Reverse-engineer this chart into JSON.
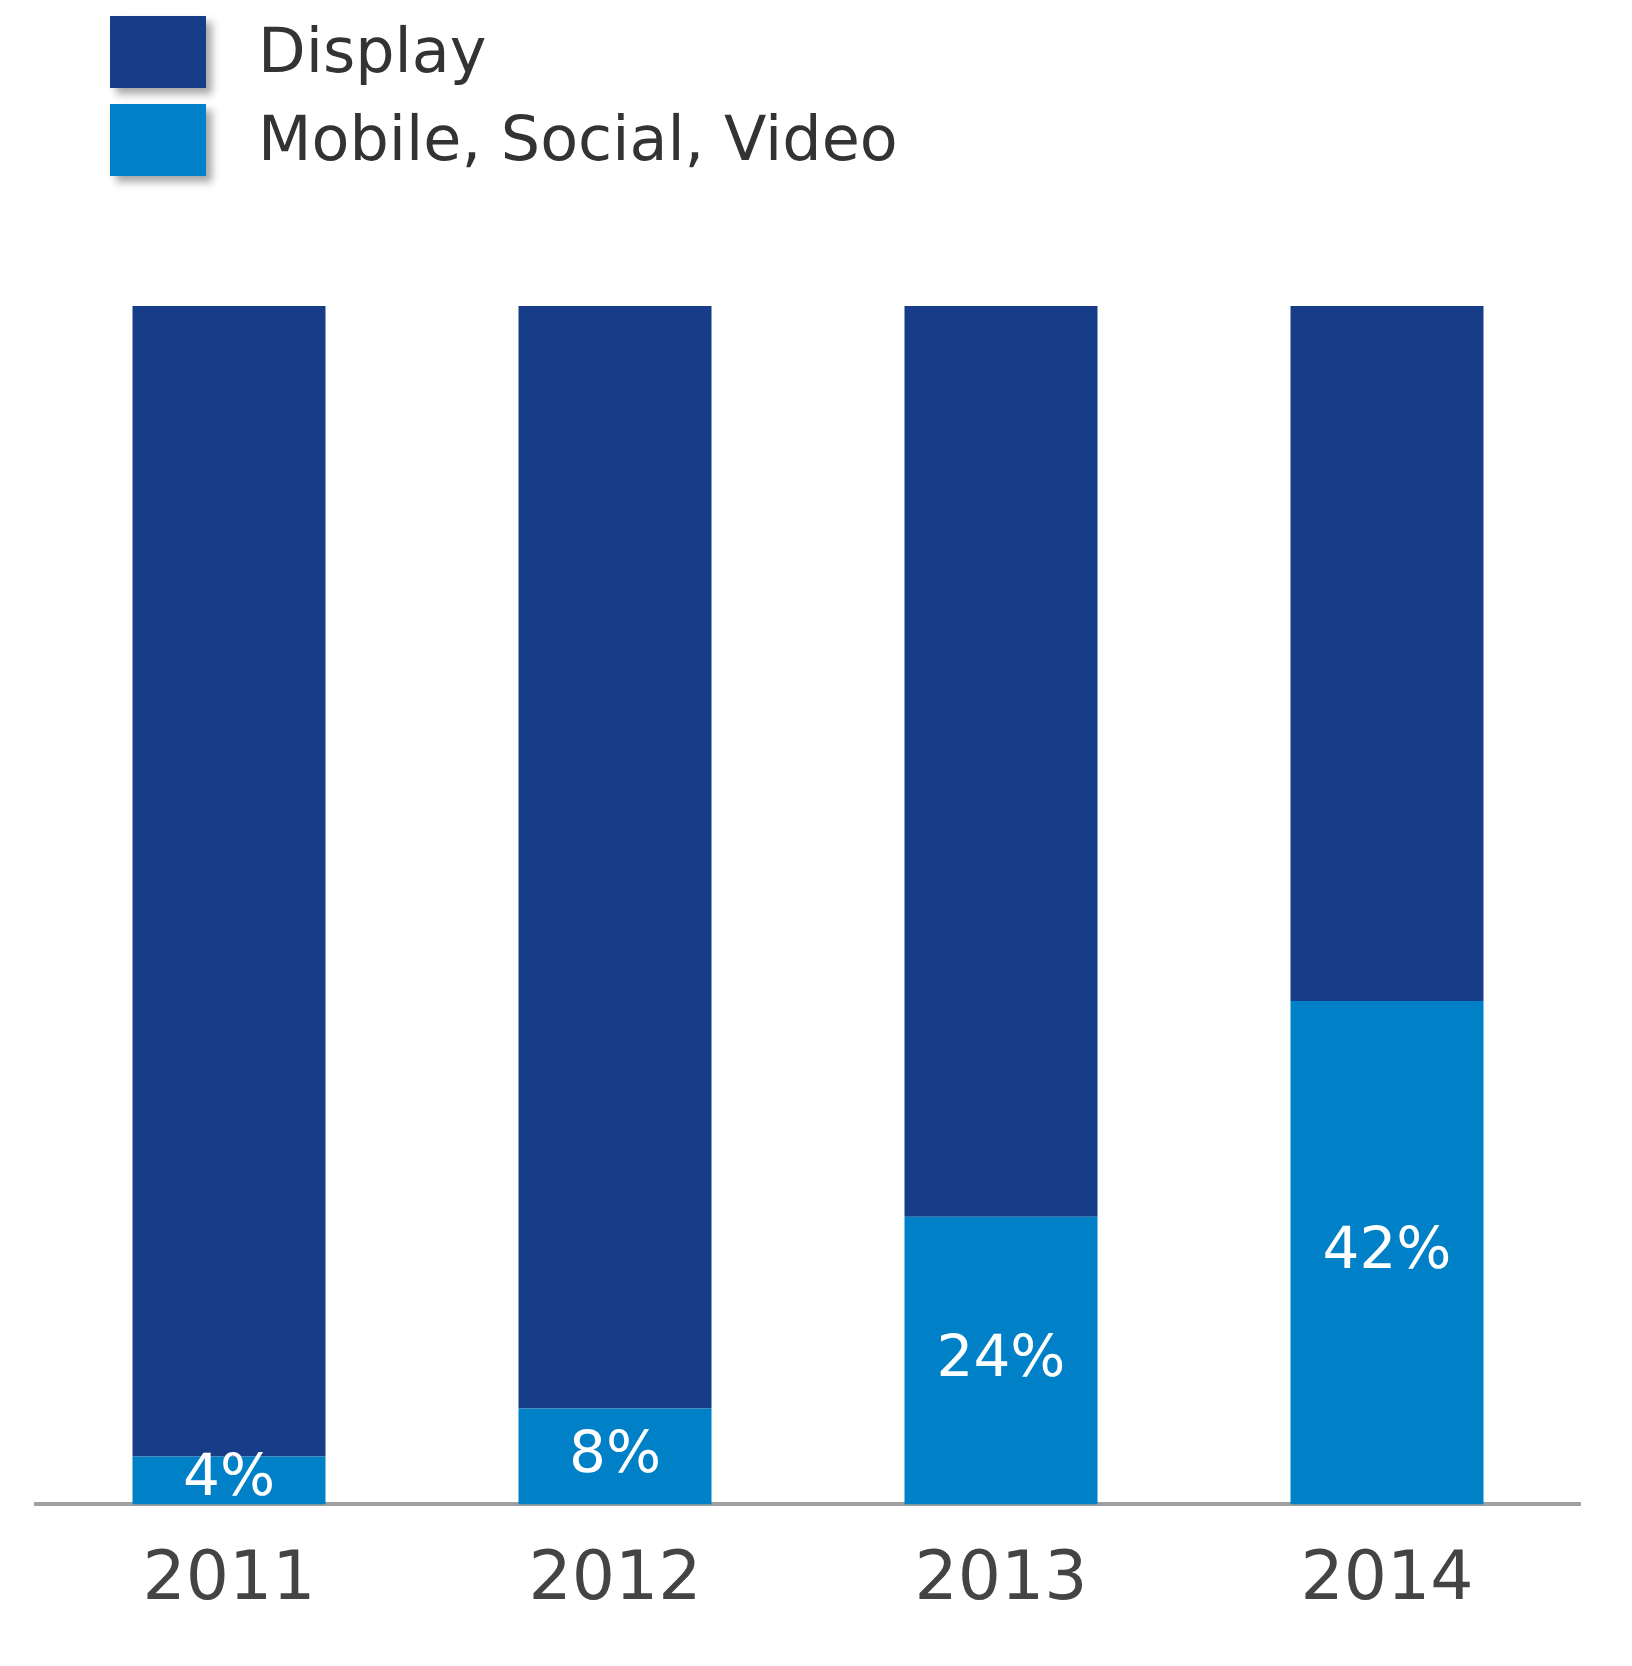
{
  "chart_data": {
    "type": "bar",
    "stacked": true,
    "categories": [
      "2011",
      "2012",
      "2013",
      "2014"
    ],
    "ylim": [
      0,
      100
    ],
    "legend": "top left",
    "grid": false,
    "series": [
      {
        "name": "Mobile, Social, Video",
        "color": "#0080c6",
        "values": [
          4,
          8,
          24,
          42
        ],
        "value_labels": [
          "4%",
          "8%",
          "24%",
          "42%"
        ]
      },
      {
        "name": "Display",
        "color": "#173c88",
        "values": [
          96,
          92,
          76,
          58
        ]
      }
    ]
  }
}
